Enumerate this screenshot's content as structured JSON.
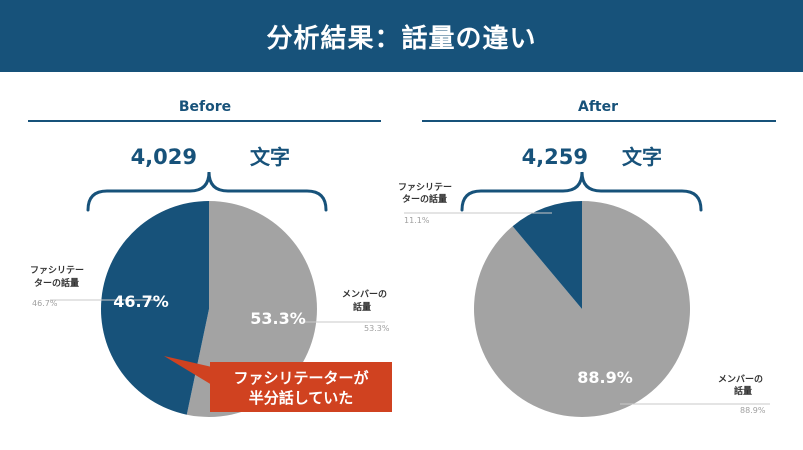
{
  "header": {
    "title": "分析結果：話量の違い"
  },
  "colors": {
    "header_bg": "#17527a",
    "facilitator": "#17527a",
    "members": "#a3a3a3",
    "callout": "#d04220",
    "text_dark": "#17527a",
    "leader_line": "#c8c8c8",
    "pct_small": "#a0a0a0"
  },
  "callout": {
    "line1": "ファシリテーターが",
    "line2": "半分話していた"
  },
  "chart_data": [
    {
      "type": "pie",
      "title": "Before",
      "total_value": "4,029",
      "total_unit": "文字",
      "slices": [
        {
          "label_line1": "ファシリテー",
          "label_line2": "ターの話量",
          "value": 46.7,
          "display": "46.7%",
          "color": "#17527a"
        },
        {
          "label_line1": "メンバーの",
          "label_line2": "話量",
          "value": 53.3,
          "display": "53.3%",
          "color": "#a3a3a3"
        }
      ]
    },
    {
      "type": "pie",
      "title": "After",
      "total_value": "4,259",
      "total_unit": "文字",
      "slices": [
        {
          "label_line1": "ファシリテー",
          "label_line2": "ターの話量",
          "value": 11.1,
          "display": "11.1%",
          "color": "#17527a"
        },
        {
          "label_line1": "メンバーの",
          "label_line2": "話量",
          "value": 88.9,
          "display": "88.9%",
          "color": "#a3a3a3"
        }
      ]
    }
  ]
}
